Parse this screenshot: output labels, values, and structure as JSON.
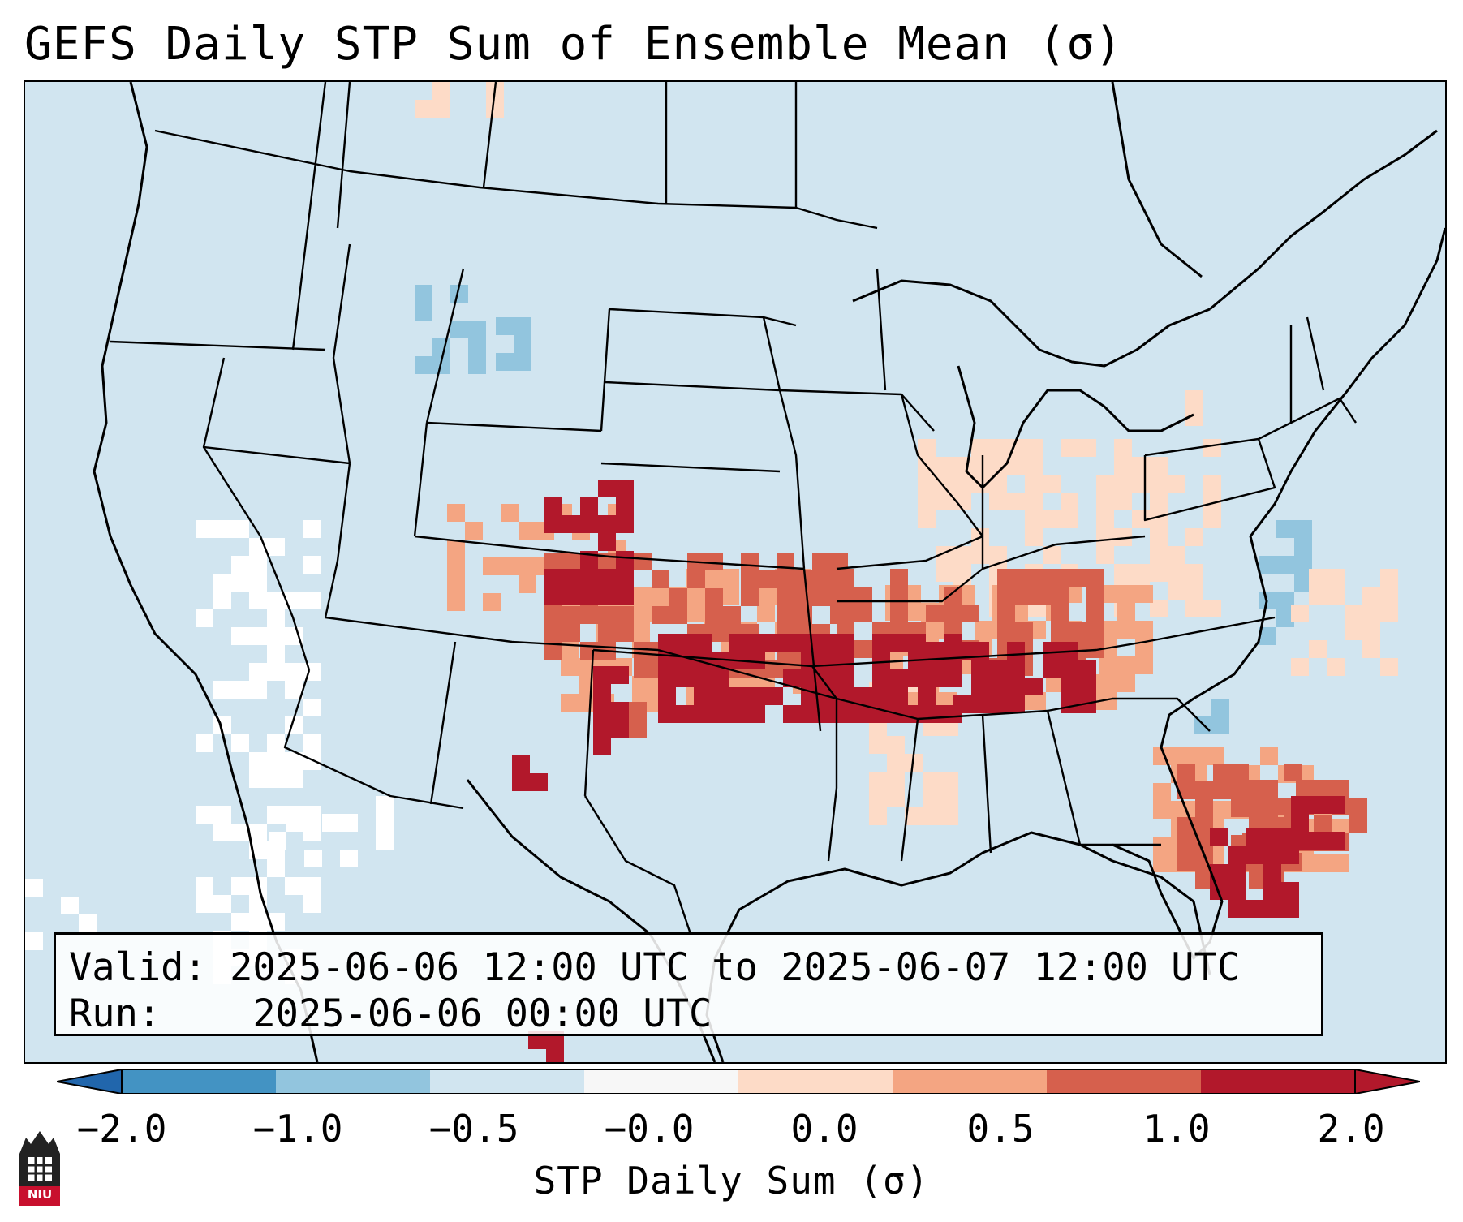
{
  "title": "GEFS Daily STP Sum of Ensemble Mean (σ)",
  "info": {
    "valid_label": "Valid:",
    "valid_value": "2025-06-06 12:00 UTC to 2025-06-07 12:00 UTC",
    "run_label": "Run:",
    "run_value": "2025-06-06 00:00 UTC"
  },
  "colorbar": {
    "label": "STP Daily Sum (σ)",
    "tick_labels": [
      "−2.0",
      "−1.0",
      "−0.5",
      "−0.0",
      "0.0",
      "0.5",
      "1.0",
      "2.0"
    ],
    "colors": [
      "#4393c3",
      "#92c5de",
      "#d1e5f0",
      "#f7f7f7",
      "#fddbc7",
      "#f4a582",
      "#d6604d",
      "#b2182b"
    ],
    "extend_low_color": "#2166ac",
    "extend_high_color": "#b2182b"
  },
  "logo": {
    "name": "niu-logo",
    "text": "NIU",
    "color": "#c8102e"
  },
  "map_colors": {
    "ocean_land_base": "#d1e5f0",
    "near_zero": "#ffffff",
    "light_red": "#fddbc7",
    "medium_red": "#f4a582",
    "red": "#d6604d",
    "dark_red": "#b2182b",
    "light_blue": "#92c5de",
    "blue": "#4393c3"
  },
  "stp_regions": [
    {
      "name": "colorado-front-range",
      "level": "dark_red"
    },
    {
      "name": "southern-plains-kansas-oklahoma",
      "level": "dark_red"
    },
    {
      "name": "ozarks-arkansas",
      "level": "dark_red"
    },
    {
      "name": "tennessee-valley",
      "level": "red"
    },
    {
      "name": "ohio-valley-virginia",
      "level": "medium_red"
    },
    {
      "name": "new-mexico-east",
      "level": "dark_red"
    },
    {
      "name": "mississippi-alabama",
      "level": "medium_red"
    },
    {
      "name": "florida-peninsula",
      "level": "dark_red"
    },
    {
      "name": "florida-atlantic-offshore",
      "level": "red"
    },
    {
      "name": "carolina-coast-offshore",
      "level": "light_red"
    },
    {
      "name": "great-basin-southwest",
      "level": "near_zero"
    },
    {
      "name": "wyoming-montana",
      "level": "light_blue"
    }
  ]
}
